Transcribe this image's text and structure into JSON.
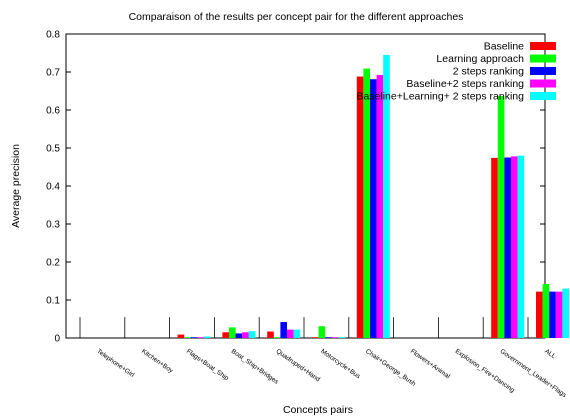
{
  "chart_data": {
    "type": "bar",
    "title": "Comparaison of the results per concept pair for the different approaches",
    "xlabel": "Concepts pairs",
    "ylabel": "Average precision",
    "ylim": [
      0,
      0.8
    ],
    "yticks": [
      "0",
      "0.1",
      "0.2",
      "0.3",
      "0.4",
      "0.5",
      "0.6",
      "0.7",
      "0.8"
    ],
    "legend_position": "top-right",
    "grid": false,
    "categories": [
      "Telephone+Girl",
      "Kitchen+Boy",
      "Flags+Boat_Ship",
      "Boat_Ship+Bridges",
      "Quadruped+Hand",
      "Motorcycle+Bus",
      "Chair+George_Bush",
      "Flowers+Animal",
      "Explosion_Fire+Dancing",
      "Government_Leader+Flags",
      "ALL"
    ],
    "series": [
      {
        "name": "Baseline",
        "color": "#ff0000",
        "values": [
          0.0,
          0.0,
          0.009,
          0.015,
          0.017,
          0.002,
          0.688,
          0.0,
          0.0,
          0.474,
          0.122
        ]
      },
      {
        "name": "Learning approach",
        "color": "#00ff00",
        "values": [
          0.0,
          0.0,
          0.002,
          0.028,
          0.002,
          0.031,
          0.709,
          0.0,
          0.0,
          0.637,
          0.142
        ]
      },
      {
        "name": "2 steps ranking",
        "color": "#0000ff",
        "values": [
          0.0,
          0.0,
          0.002,
          0.012,
          0.042,
          0.002,
          0.681,
          0.0,
          0.0,
          0.475,
          0.122
        ]
      },
      {
        "name": "Baseline+2 steps ranking",
        "color": "#ff00ff",
        "values": [
          0.0,
          0.0,
          0.002,
          0.015,
          0.022,
          0.002,
          0.692,
          0.0,
          0.0,
          0.478,
          0.122
        ]
      },
      {
        "name": "Baseline+Learning+ 2 steps ranking",
        "color": "#00ffff",
        "values": [
          0.0,
          0.0,
          0.004,
          0.018,
          0.022,
          0.002,
          0.745,
          0.0,
          0.0,
          0.48,
          0.13
        ]
      }
    ]
  }
}
